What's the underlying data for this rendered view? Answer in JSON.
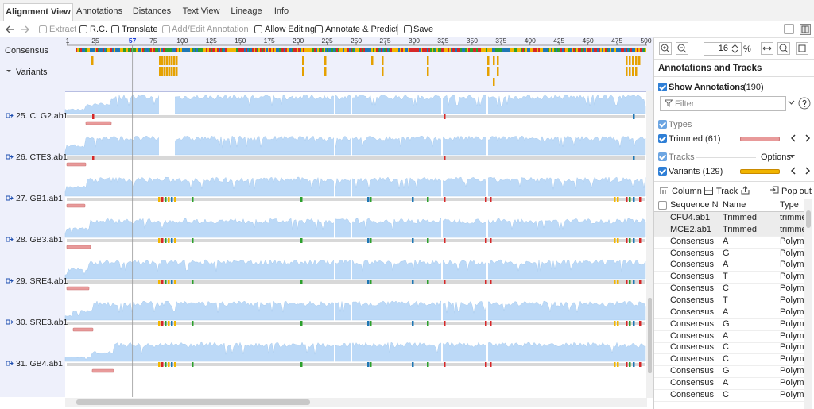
{
  "tabs": [
    "Alignment View",
    "Annotations",
    "Distances",
    "Text View",
    "Lineage",
    "Info"
  ],
  "toolbar": {
    "extract": "Extract",
    "rc": "R.C.",
    "translate": "Translate",
    "annotation": "Add/Edit Annotation",
    "editing": "Allow Editing",
    "predict": "Annotate & Predict",
    "save": "Save"
  },
  "ruler": {
    "ticks": [
      1,
      25,
      75,
      100,
      125,
      150,
      175,
      200,
      225,
      250,
      275,
      300,
      325,
      350,
      375,
      400,
      425,
      450,
      475,
      500
    ],
    "cursor": 57
  },
  "tracks": {
    "consensus": "Consensus",
    "variants": "Variants"
  },
  "sequences": [
    "25. CLG2.ab1",
    "26. CTE3.ab1",
    "27. GB1.ab1",
    "28. GB3.ab1",
    "29. SRE4.ab1",
    "30. SRE3.ab1",
    "31. GB4.ab1"
  ],
  "panel": {
    "zoom": 16,
    "zoom_unit": "%",
    "heading": "Annotations and Tracks",
    "show_annotations": "Show Annotations",
    "annotation_count": "(190)",
    "filter": "Filter",
    "types": "Types",
    "trimmed": "Trimmed (61)",
    "tracks": "Tracks",
    "options": "Options",
    "variants": "Variants (129)",
    "column": "Column",
    "track": "Track",
    "pop_out": "Pop out",
    "table": {
      "header": [
        "Sequence Na...",
        "Name",
        "Type"
      ],
      "rows": [
        [
          "CFU4.ab1",
          "Trimmed",
          "trimme"
        ],
        [
          "MCE2.ab1",
          "Trimmed",
          "trimme"
        ],
        [
          "Consensus",
          "A",
          "Polymo"
        ],
        [
          "Consensus",
          "G",
          "Polymo"
        ],
        [
          "Consensus",
          "A",
          "Polymo"
        ],
        [
          "Consensus",
          "T",
          "Polymo"
        ],
        [
          "Consensus",
          "C",
          "Polymo"
        ],
        [
          "Consensus",
          "T",
          "Polymo"
        ],
        [
          "Consensus",
          "A",
          "Polymo"
        ],
        [
          "Consensus",
          "G",
          "Polymo"
        ],
        [
          "Consensus",
          "A",
          "Polymo"
        ],
        [
          "Consensus",
          "C",
          "Polymo"
        ],
        [
          "Consensus",
          "C",
          "Polymo"
        ],
        [
          "Consensus",
          "G",
          "Polymo"
        ],
        [
          "Consensus",
          "A",
          "Polymo"
        ],
        [
          "Consensus",
          "C",
          "Polymo"
        ]
      ]
    }
  }
}
